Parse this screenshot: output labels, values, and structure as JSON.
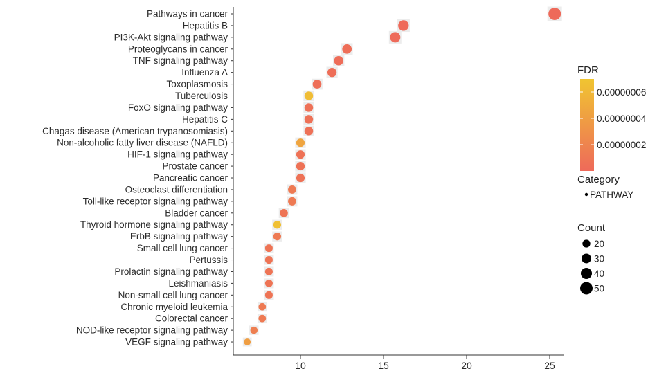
{
  "chart_data": {
    "type": "scatter",
    "title": "",
    "xlabel": "",
    "ylabel": "",
    "xlim": [
      6.5,
      26.2
    ],
    "x_ticks": [
      10,
      15,
      20,
      25
    ],
    "grid": false,
    "categories": [
      "Pathways in cancer",
      "Hepatitis B",
      "PI3K-Akt signaling pathway",
      "Proteoglycans in cancer",
      "TNF signaling pathway",
      "Influenza A",
      "Toxoplasmosis",
      "Tuberculosis",
      "FoxO signaling pathway",
      "Hepatitis C",
      "Chagas disease (American trypanosomiasis)",
      "Non-alcoholic fatty liver disease (NAFLD)",
      "HIF-1 signaling pathway",
      "Prostate cancer",
      "Pancreatic cancer",
      "Osteoclast differentiation",
      "Toll-like receptor signaling pathway",
      "Bladder cancer",
      "Thyroid hormone signaling pathway",
      "ErbB signaling pathway",
      "Small cell lung cancer",
      "Pertussis",
      "Prolactin signaling pathway",
      "Leishmaniasis",
      "Non-small cell lung cancer",
      "Chronic myeloid leukemia",
      "Colorectal cancer",
      "NOD-like receptor signaling pathway",
      "VEGF signaling pathway"
    ],
    "points": [
      {
        "x": 25.3,
        "count": 50,
        "fdr": 1e-10
      },
      {
        "x": 16.2,
        "count": 36,
        "fdr": 3e-10
      },
      {
        "x": 15.7,
        "count": 35,
        "fdr": 4e-10
      },
      {
        "x": 12.8,
        "count": 29,
        "fdr": 3e-09
      },
      {
        "x": 12.3,
        "count": 28,
        "fdr": 2e-09
      },
      {
        "x": 11.9,
        "count": 27,
        "fdr": 3e-09
      },
      {
        "x": 11.0,
        "count": 25,
        "fdr": 4e-09
      },
      {
        "x": 10.5,
        "count": 24,
        "fdr": 6.4e-08
      },
      {
        "x": 10.5,
        "count": 24,
        "fdr": 5e-09
      },
      {
        "x": 10.5,
        "count": 24,
        "fdr": 5e-09
      },
      {
        "x": 10.5,
        "count": 24,
        "fdr": 5e-09
      },
      {
        "x": 10.0,
        "count": 23,
        "fdr": 4.5e-08
      },
      {
        "x": 10.0,
        "count": 23,
        "fdr": 6e-09
      },
      {
        "x": 10.0,
        "count": 23,
        "fdr": 6e-09
      },
      {
        "x": 10.0,
        "count": 23,
        "fdr": 6e-09
      },
      {
        "x": 9.5,
        "count": 22,
        "fdr": 1.2e-08
      },
      {
        "x": 9.5,
        "count": 22,
        "fdr": 1.2e-08
      },
      {
        "x": 9.0,
        "count": 21,
        "fdr": 8e-09
      },
      {
        "x": 8.6,
        "count": 20,
        "fdr": 6.6e-08
      },
      {
        "x": 8.6,
        "count": 20,
        "fdr": 1.2e-08
      },
      {
        "x": 8.1,
        "count": 19,
        "fdr": 8e-09
      },
      {
        "x": 8.1,
        "count": 19,
        "fdr": 8e-09
      },
      {
        "x": 8.1,
        "count": 19,
        "fdr": 8e-09
      },
      {
        "x": 8.1,
        "count": 19,
        "fdr": 8e-09
      },
      {
        "x": 8.1,
        "count": 19,
        "fdr": 8e-09
      },
      {
        "x": 7.7,
        "count": 18,
        "fdr": 1.2e-08
      },
      {
        "x": 7.7,
        "count": 18,
        "fdr": 1.2e-08
      },
      {
        "x": 7.2,
        "count": 17,
        "fdr": 1.6e-08
      },
      {
        "x": 6.8,
        "count": 15,
        "fdr": 4e-08
      }
    ],
    "color_scale": {
      "title": "FDR",
      "low_color": "#ee6a5a",
      "high_color": "#f0c531",
      "min": 0.0,
      "max": 7e-08,
      "tick_values": [
        2e-08,
        4e-08,
        6e-08
      ],
      "tick_labels": [
        "0.00000002",
        "0.00000004",
        "0.00000006"
      ]
    },
    "category_legend": {
      "title": "Category",
      "items": [
        "PATHWAY"
      ]
    },
    "size_legend": {
      "title": "Count",
      "values": [
        20,
        30,
        40,
        50
      ],
      "labels": [
        "20",
        "30",
        "40",
        "50"
      ]
    }
  }
}
